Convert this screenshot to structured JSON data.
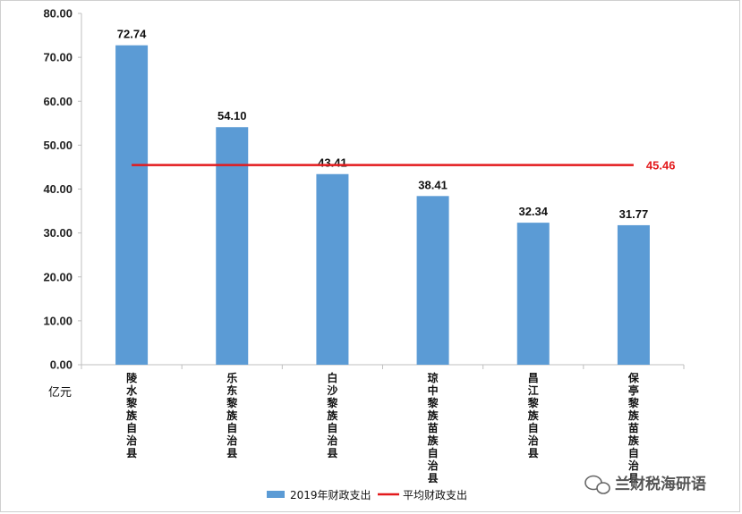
{
  "chart_data": {
    "type": "bar",
    "title": "",
    "ylabel": "亿元",
    "ylim": [
      0,
      80
    ],
    "yticks": [
      "0.00",
      "10.00",
      "20.00",
      "30.00",
      "40.00",
      "50.00",
      "60.00",
      "70.00",
      "80.00"
    ],
    "categories": [
      "陵水黎族自治县",
      "乐东黎族自治县",
      "白沙黎族自治县",
      "琼中黎族苗族自治县",
      "昌江黎族自治县",
      "保亭黎族苗族自治县"
    ],
    "series": [
      {
        "name": "2019年财政支出",
        "type": "bar",
        "color": "#5b9bd5",
        "values": [
          72.74,
          54.1,
          43.41,
          38.41,
          32.34,
          31.77
        ],
        "value_labels": [
          "72.74",
          "54.10",
          "43.41",
          "38.41",
          "32.34",
          "31.77"
        ]
      },
      {
        "name": "平均财政支出",
        "type": "line",
        "color": "#e31a1c",
        "value": 45.46,
        "value_label": "45.46"
      }
    ],
    "legend": "bottom",
    "grid": false
  },
  "watermark": {
    "text": "兰财税海研语",
    "icon": "wechat-icon"
  }
}
